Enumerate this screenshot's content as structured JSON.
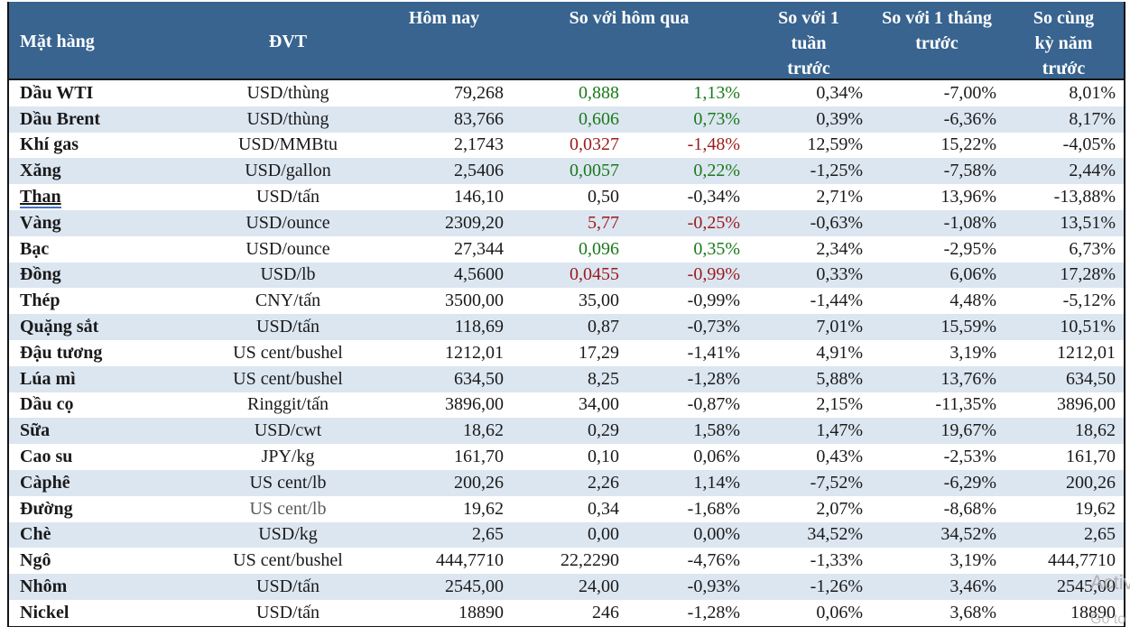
{
  "table": {
    "header": {
      "item": "Mặt hàng",
      "unit": "ĐVT",
      "today": "Hôm nay",
      "vs_yesterday": "So với hôm qua",
      "vs_week": "So với 1 tuần trước",
      "vs_month": "So với 1 tháng trước",
      "vs_year": "So cùng kỳ năm trước"
    },
    "rows": [
      {
        "item": "Dầu WTI",
        "unit": "USD/thùng",
        "today": "79,268",
        "change": "0,888",
        "change_pct": "1,13%",
        "week": "0,34%",
        "month": "-7,00%",
        "year": "8,01%",
        "trend": "up"
      },
      {
        "item": "Dầu Brent",
        "unit": "USD/thùng",
        "today": "83,766",
        "change": "0,606",
        "change_pct": "0,73%",
        "week": "0,39%",
        "month": "-6,36%",
        "year": "8,17%",
        "trend": "up"
      },
      {
        "item": "Khí gas",
        "unit": "USD/MMBtu",
        "today": "2,1743",
        "change": "0,0327",
        "change_pct": "-1,48%",
        "week": "12,59%",
        "month": "15,22%",
        "year": "-4,05%",
        "trend": "down"
      },
      {
        "item": "Xăng",
        "unit": "USD/gallon",
        "today": "2,5406",
        "change": "0,0057",
        "change_pct": "0,22%",
        "week": "-1,25%",
        "month": "-7,58%",
        "year": "2,44%",
        "trend": "up"
      },
      {
        "item": "Than",
        "unit": "USD/tấn",
        "today": "146,10",
        "change": "0,50",
        "change_pct": "-0,34%",
        "week": "2,71%",
        "month": "13,96%",
        "year": "-13,88%",
        "trend": "flat",
        "underline": true
      },
      {
        "item": "Vàng",
        "unit": "USD/ounce",
        "today": "2309,20",
        "change": "5,77",
        "change_pct": "-0,25%",
        "week": "-0,63%",
        "month": "-1,08%",
        "year": "13,51%",
        "trend": "down"
      },
      {
        "item": "Bạc",
        "unit": "USD/ounce",
        "today": "27,344",
        "change": "0,096",
        "change_pct": "0,35%",
        "week": "2,34%",
        "month": "-2,95%",
        "year": "6,73%",
        "trend": "up"
      },
      {
        "item": "Đồng",
        "unit": "USD/lb",
        "today": "4,5600",
        "change": "0,0455",
        "change_pct": "-0,99%",
        "week": "0,33%",
        "month": "6,06%",
        "year": "17,28%",
        "trend": "down"
      },
      {
        "item": "Thép",
        "unit": "CNY/tấn",
        "today": "3500,00",
        "change": "35,00",
        "change_pct": "-0,99%",
        "week": "-1,44%",
        "month": "4,48%",
        "year": "-5,12%",
        "trend": "flat"
      },
      {
        "item": "Quặng sắt",
        "unit": "USD/tấn",
        "today": "118,69",
        "change": "0,87",
        "change_pct": "-0,73%",
        "week": "7,01%",
        "month": "15,59%",
        "year": "10,51%",
        "trend": "flat"
      },
      {
        "item": "Đậu tương",
        "unit": "US cent/bushel",
        "today": "1212,01",
        "change": "17,29",
        "change_pct": "-1,41%",
        "week": "4,91%",
        "month": "3,19%",
        "year": "1212,01",
        "trend": "flat"
      },
      {
        "item": "Lúa mì",
        "unit": "US cent/bushel",
        "today": "634,50",
        "change": "8,25",
        "change_pct": "-1,28%",
        "week": "5,88%",
        "month": "13,76%",
        "year": "634,50",
        "trend": "flat"
      },
      {
        "item": "Dầu cọ",
        "unit": "Ringgit/tấn",
        "today": "3896,00",
        "change": "34,00",
        "change_pct": "-0,87%",
        "week": "2,15%",
        "month": "-11,35%",
        "year": "3896,00",
        "trend": "flat"
      },
      {
        "item": "Sữa",
        "unit": "USD/cwt",
        "today": "18,62",
        "change": "0,29",
        "change_pct": "1,58%",
        "week": "1,47%",
        "month": "19,67%",
        "year": "18,62",
        "trend": "flat"
      },
      {
        "item": "Cao su",
        "unit": "JPY/kg",
        "today": "161,70",
        "change": "0,10",
        "change_pct": "0,06%",
        "week": "0,43%",
        "month": "-2,53%",
        "year": "161,70",
        "trend": "flat"
      },
      {
        "item": "Càphê",
        "unit": "US cent/lb",
        "today": "200,26",
        "change": "2,26",
        "change_pct": "1,14%",
        "week": "-7,52%",
        "month": "-6,29%",
        "year": "200,26",
        "trend": "flat"
      },
      {
        "item": "Đường",
        "unit": "US cent/lb",
        "today": "19,62",
        "change": "0,34",
        "change_pct": "-1,68%",
        "week": "2,07%",
        "month": "-8,68%",
        "year": "19,62",
        "trend": "flat",
        "unit_muted": true
      },
      {
        "item": "Chè",
        "unit": "USD/kg",
        "today": "2,65",
        "change": "0,00",
        "change_pct": "0,00%",
        "week": "34,52%",
        "month": "34,52%",
        "year": "2,65",
        "trend": "flat"
      },
      {
        "item": "Ngô",
        "unit": "US cent/bushel",
        "today": "444,7710",
        "change": "22,2290",
        "change_pct": "-4,76%",
        "week": "-1,33%",
        "month": "3,19%",
        "year": "444,7710",
        "trend": "flat"
      },
      {
        "item": "Nhôm",
        "unit": "USD/tấn",
        "today": "2545,00",
        "change": "24,00",
        "change_pct": "-0,93%",
        "week": "-1,26%",
        "month": "3,46%",
        "year": "2545,00",
        "trend": "flat"
      },
      {
        "item": "Nickel",
        "unit": "USD/tấn",
        "today": "18890",
        "change": "246",
        "change_pct": "-1,28%",
        "week": "0,06%",
        "month": "3,68%",
        "year": "18890",
        "trend": "flat"
      }
    ]
  },
  "colors": {
    "header_bg": "#38648F",
    "header_text": "#FFFFFF",
    "row_alt_bg": "#DCE6F1",
    "up_green": "#1A7A1A",
    "down_red": "#9B1B1B",
    "text": "#1A1A1A"
  },
  "watermark": {
    "line1": "Activ",
    "line2": "Go to"
  }
}
